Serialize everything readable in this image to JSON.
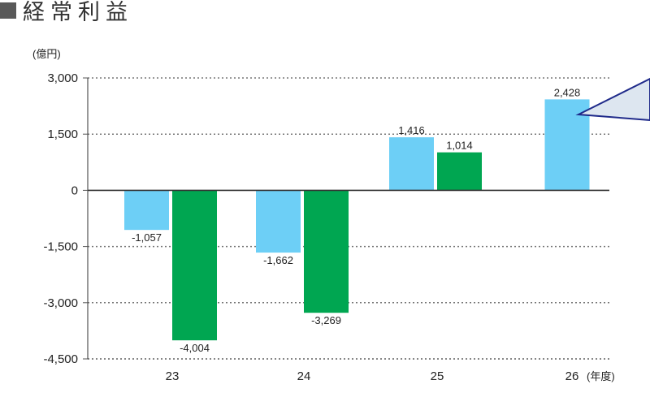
{
  "title": "経常利益",
  "chart_data": {
    "type": "bar",
    "title": "経常利益",
    "unit_label": "(億円)",
    "x_unit_label": "(年度)",
    "categories": [
      "23",
      "24",
      "25",
      "26"
    ],
    "series": [
      {
        "values": [
          -1057,
          -1662,
          1416,
          2428
        ],
        "color": "#6dcff6"
      },
      {
        "values": [
          -4004,
          -3269,
          1014,
          null
        ],
        "color": "#00a651"
      }
    ],
    "value_labels": [
      [
        "-1,057",
        "-1,662",
        "1,416",
        "2,428"
      ],
      [
        "-4,004",
        "-3,269",
        "1,014",
        ""
      ]
    ],
    "ylim": [
      -4500,
      3000
    ],
    "yticks": [
      3000,
      1500,
      0,
      -1500,
      -3000,
      -4500
    ],
    "ytick_labels": [
      "3,000",
      "1,500",
      "0",
      "-1,500",
      "-3,000",
      "-4,500"
    ],
    "grid": true,
    "grid_style": "dotted",
    "zero_line": true,
    "callout_color": "#1f2a8a"
  }
}
